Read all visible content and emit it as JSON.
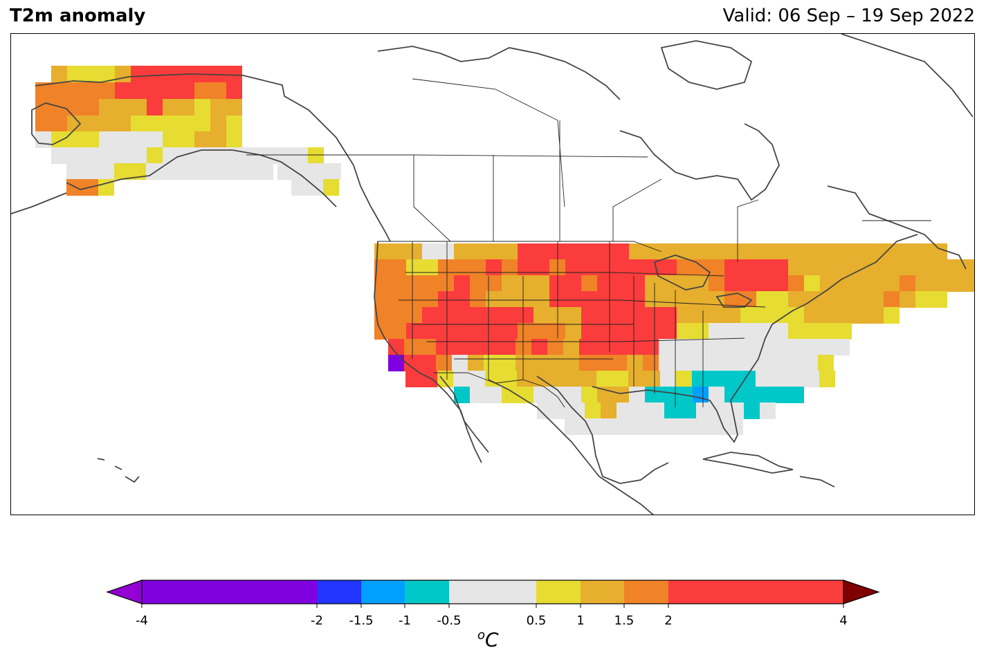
{
  "title": "T2m anomaly",
  "valid_label": "Valid: 06 Sep – 19 Sep 2022",
  "colorbar": {
    "unit_base": "C",
    "unit_sup": "o",
    "ticks": [
      "-4",
      "-2",
      "-1.5",
      "-1",
      "-0.5",
      "0.5",
      "1",
      "1.5",
      "2",
      "4"
    ],
    "extend_low_color": "#9400d3",
    "extend_high_color": "#800000",
    "bins": [
      {
        "from": -4,
        "to": -2,
        "color": "#8000e0"
      },
      {
        "from": -2,
        "to": -1.5,
        "color": "#2236ff"
      },
      {
        "from": -1.5,
        "to": -1,
        "color": "#00a0ff"
      },
      {
        "from": -1,
        "to": -0.5,
        "color": "#00c8c8"
      },
      {
        "from": -0.5,
        "to": 0.5,
        "color": "#e6e6e6"
      },
      {
        "from": 0.5,
        "to": 1,
        "color": "#e6dc32"
      },
      {
        "from": 1,
        "to": 1.5,
        "color": "#e6af2d"
      },
      {
        "from": 1.5,
        "to": 2,
        "color": "#f08228"
      },
      {
        "from": 2,
        "to": 4,
        "color": "#fa3c3c"
      }
    ]
  },
  "regions": {
    "alaska": "mostly +1 to +4 °C (warm), near-normal along south coast",
    "western_us": "+1.5 to +4 °C",
    "northern_plains": "+2 to +4 °C",
    "great_lakes": "+2 to +4 °C",
    "southeast_us": "-1 to -0.5 °C (cool) around Mississippi/Alabama",
    "florida_gulf": "near normal",
    "northeast_us": "+0.5 to +1.5 °C"
  }
}
